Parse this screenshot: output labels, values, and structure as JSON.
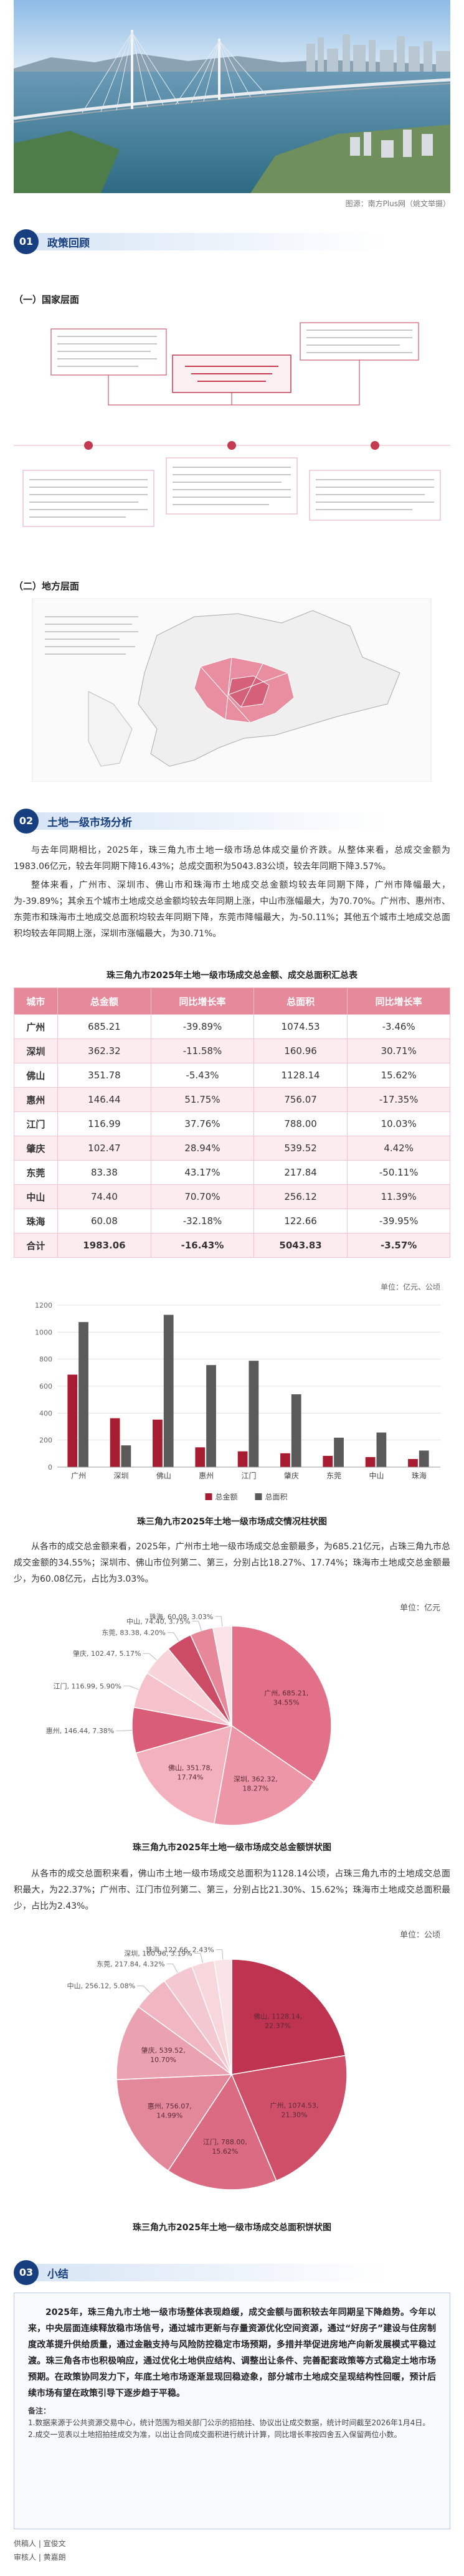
{
  "photo_caption": "图源：南方Plus网（姚文举摄）",
  "sections": [
    {
      "number": "01",
      "title": "政策回顾"
    },
    {
      "number": "02",
      "title": "土地一级市场分析"
    },
    {
      "number": "03",
      "title": "小结"
    }
  ],
  "policy": {
    "national_heading": "（一）国家层面",
    "local_heading": "（二）地方层面"
  },
  "analysis": {
    "intro": [
      "与去年同期相比，2025年，珠三角九市土地一级市场总体成交量价齐跌。从整体来看，总成交金额为1983.06亿元，较去年同期下降16.43%；总成交面积为5043.83公顷，较去年同期下降3.57%。",
      "整体来看，广州市、深圳市、佛山市和珠海市土地成交总金额均较去年同期下降，广州市降幅最大，为-39.89%；其余五个城市土地成交总金额均较去年同期上涨，中山市涨幅最大，为70.70%。广州市、惠州市、东莞市和珠海市土地成交总面积均较去年同期下降，东莞市降幅最大，为-50.11%；其他五个城市土地成交总面积均较去年同期上涨，深圳市涨幅最大，为30.71%。"
    ],
    "table_title": "珠三角九市2025年土地一级市场成交总金额、成交总面积汇总表",
    "table": {
      "columns": [
        "城市",
        "总金额",
        "同比增长率",
        "总面积",
        "同比增长率"
      ],
      "rows": [
        [
          "广州",
          "685.21",
          "-39.89%",
          "1074.53",
          "-3.46%"
        ],
        [
          "深圳",
          "362.32",
          "-11.58%",
          "160.96",
          "30.71%"
        ],
        [
          "佛山",
          "351.78",
          "-5.43%",
          "1128.14",
          "15.62%"
        ],
        [
          "惠州",
          "146.44",
          "51.75%",
          "756.07",
          "-17.35%"
        ],
        [
          "江门",
          "116.99",
          "37.76%",
          "788.00",
          "10.03%"
        ],
        [
          "肇庆",
          "102.47",
          "28.94%",
          "539.52",
          "4.42%"
        ],
        [
          "东莞",
          "83.38",
          "43.17%",
          "217.84",
          "-50.11%"
        ],
        [
          "中山",
          "74.40",
          "70.70%",
          "256.12",
          "11.39%"
        ],
        [
          "珠海",
          "60.08",
          "-32.18%",
          "122.66",
          "-39.95%"
        ],
        [
          "合计",
          "1983.06",
          "-16.43%",
          "5043.83",
          "-3.57%"
        ]
      ]
    },
    "paragraph_amount": "从各市的成交总金额来看，2025年，广州市土地一级市场成交总金额最多，为685.21亿元，占珠三角九市总成交金额的34.55%；深圳市、佛山市位列第二、第三，分别占比18.27%、17.74%；珠海市土地成交总金额最少，为60.08亿元，占比为3.03%。",
    "paragraph_area": "从各市的成交总面积来看，佛山市土地一级市场成交总面积为1128.14公顷，占珠三角九市的土地成交总面积最大，为22.37%；广州市、江门市位列第二、第三，分别占比21.30%、15.62%；珠海市土地成交总面积最少，占比为2.43%。"
  },
  "summary": {
    "text": "2025年，珠三角九市土地一级市场整体表现趋缓，成交金额与面积较去年同期呈下降趋势。今年以来，中央层面连续释放稳市场信号，通过城市更新与存量资源优化空间资源，通过“好房子”建设与住房制度改革提升供给质量，通过金融支持与风险防控稳定市场预期，多措并举促进房地产向新发展模式平稳过渡。珠三角各市也积极响应，通过优化土地供应结构、调整出让条件、完善配套政策等方式稳定土地市场预期。在政策协同发力下，年底土地市场逐渐显现回稳迹象，部分城市土地成交呈现结构性回暖，预计后续市场有望在政策引导下逐步趋于平稳。",
    "notes_heading": "备注：",
    "notes": [
      "1.数据来源于公共资源交易中心，统计范围为相关部门公示的招拍挂、协议出让成交数据，统计时间截至2026年1月4日。",
      "2.成交一览表以土地招拍挂成交为准，以出让合同成交面积进行统计计算，同比增长率按四舍五入保留两位小数。"
    ]
  },
  "footer": {
    "contributor": "供稿人 | 宣俊文",
    "reviewer": "审核人 | 黄嘉朗"
  },
  "chart_data": [
    {
      "type": "bar",
      "title": "珠三角九市2025年土地一级市场成交情况柱状图",
      "unit_note": "单位：亿元、公顷",
      "categories": [
        "广州",
        "深圳",
        "佛山",
        "惠州",
        "江门",
        "肇庆",
        "东莞",
        "中山",
        "珠海"
      ],
      "series": [
        {
          "name": "总金额",
          "color": "#a81c32",
          "values": [
            685.21,
            362.32,
            351.78,
            146.44,
            116.99,
            102.47,
            83.38,
            74.4,
            60.08
          ]
        },
        {
          "name": "总面积",
          "color": "#5a5a5a",
          "values": [
            1074.53,
            160.96,
            1128.14,
            756.07,
            788.0,
            539.52,
            217.84,
            256.12,
            122.66
          ]
        }
      ],
      "ylim": [
        0,
        1200
      ],
      "yticks": [
        0,
        200,
        400,
        600,
        800,
        1000,
        1200
      ],
      "grid": true,
      "legend": "bottom"
    },
    {
      "type": "pie",
      "title": "珠三角九市2025年土地一级市场成交总金额饼状图",
      "unit_note": "单位：亿元",
      "values": [
        685.21,
        362.32,
        351.78,
        146.44,
        116.99,
        102.47,
        83.38,
        74.4,
        60.08
      ],
      "value_labels": [
        "广州, 685.21,",
        "深圳, 362.32,",
        "佛山, 351.78,",
        "惠州, 146.44, 7.38%",
        "江门, 116.99, 5.90%",
        "肇庆, 102.47, 5.17%",
        "东莞, 83.38, 4.20%",
        "中山, 74.40, 3.75%",
        "珠海, 60.08, 3.03%"
      ],
      "share_labels": [
        "34.55%",
        "18.27%",
        "17.74%",
        null,
        null,
        null,
        null,
        null,
        null
      ],
      "colors": [
        "#e27088",
        "#ec96a8",
        "#f2b1bd",
        "#d95d77",
        "#f5c2cc",
        "#f8d3da",
        "#cc4b65",
        "#e7879a",
        "#fbe3e8"
      ]
    },
    {
      "type": "pie",
      "title": "珠三角九市2025年土地一级市场成交总面积饼状图",
      "unit_note": "单位：公顷",
      "values": [
        1128.14,
        1074.53,
        788.0,
        756.07,
        539.52,
        256.12,
        217.84,
        160.96,
        122.66
      ],
      "value_labels": [
        "佛山, 1128.14,",
        "广州, 1074.53,",
        "江门, 788.00,",
        "惠州, 756.07,",
        "肇庆, 539.52,",
        "中山, 256.12, 5.08%",
        "东莞, 217.84, 4.32%",
        "深圳, 160.96, 3.19%",
        "珠海, 122.66, 2.43%"
      ],
      "share_labels": [
        "22.37%",
        "21.30%",
        "15.62%",
        "14.99%",
        "10.70%",
        null,
        null,
        null,
        null
      ],
      "colors": [
        "#bd3350",
        "#cf4f69",
        "#da6b82",
        "#e3889a",
        "#eaa2b0",
        "#f0b7c2",
        "#f4c8d0",
        "#f7d6dc",
        "#fae4e8"
      ]
    }
  ]
}
